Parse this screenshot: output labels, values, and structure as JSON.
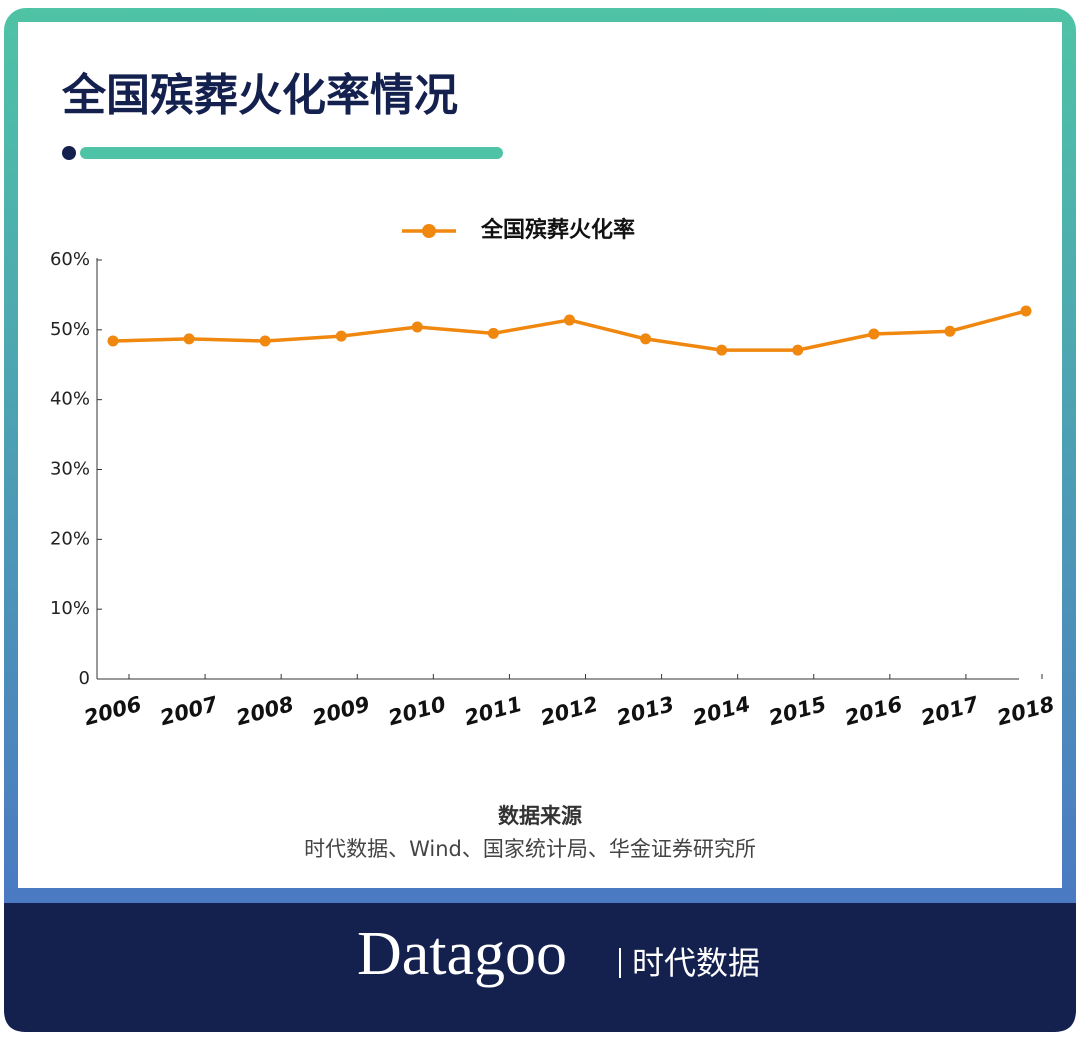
{
  "chart_data": {
    "type": "line",
    "title": "全国殡葬火化率情况",
    "categories": [
      "2006",
      "2007",
      "2008",
      "2009",
      "2010",
      "2011",
      "2012",
      "2013",
      "2014",
      "2015",
      "2016",
      "2017",
      "2018"
    ],
    "series": [
      {
        "name": "全国殡葬火化率",
        "color": "#f0870f",
        "values": [
          48.4,
          48.7,
          48.4,
          49.1,
          50.4,
          49.5,
          51.4,
          48.7,
          47.1,
          47.1,
          49.4,
          49.8,
          52.7
        ]
      }
    ],
    "ylim": [
      0,
      60
    ],
    "yticks": [
      0,
      {
        "value": 10,
        "label": "10%"
      },
      {
        "value": 20,
        "label": "20%"
      },
      {
        "value": 30,
        "label": "30%"
      },
      {
        "value": 40,
        "label": "40%"
      },
      {
        "value": 50,
        "label": "50%"
      },
      {
        "value": 60,
        "label": "60%"
      }
    ],
    "grid": false,
    "legend": "top",
    "source_title": "数据来源",
    "source": "时代数据、Wind、国家统计局、华金证券研究所"
  },
  "footer": {
    "brand": "Datagoo",
    "brand_cn": "时代数据"
  }
}
